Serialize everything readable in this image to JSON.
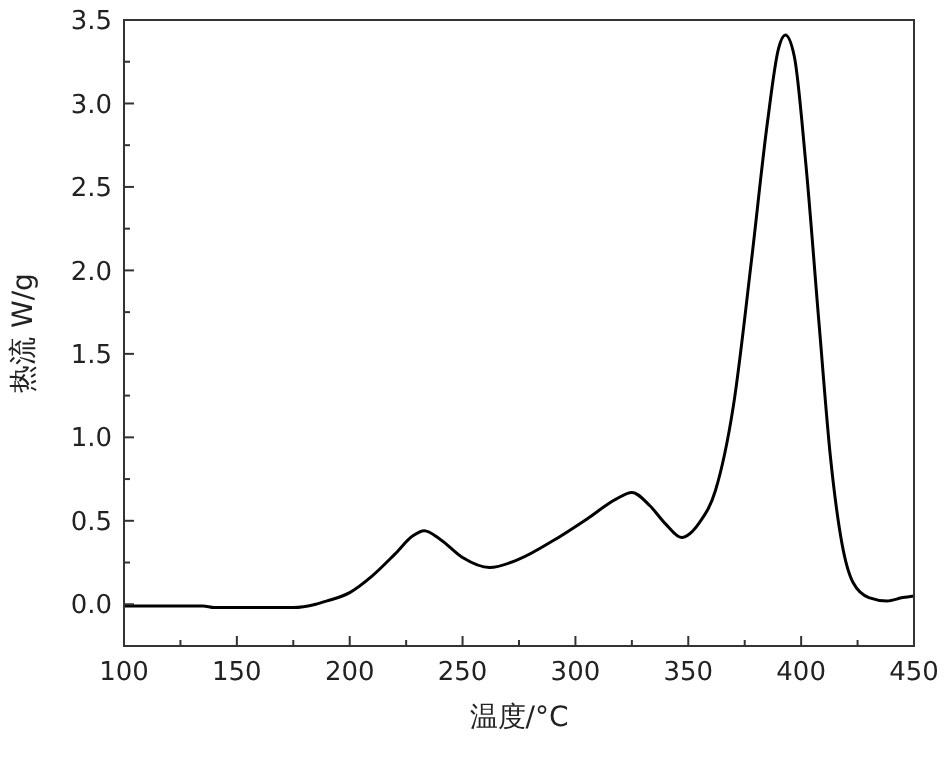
{
  "chart_data": {
    "type": "line",
    "xlabel": "温度/°C",
    "ylabel": "热流 W/g",
    "x": [
      100,
      135,
      140,
      175,
      185,
      190,
      200,
      210,
      220,
      228,
      233,
      240,
      250,
      262,
      275,
      290,
      305,
      318,
      325,
      333,
      340,
      347,
      355,
      362,
      370,
      378,
      385,
      390,
      393,
      397,
      402,
      408,
      413,
      418,
      423,
      430,
      438,
      445,
      450
    ],
    "series": [
      {
        "color": "#000000",
        "values": [
          -0.01,
          -0.01,
          -0.02,
          -0.02,
          0.0,
          0.02,
          0.07,
          0.17,
          0.3,
          0.41,
          0.44,
          0.39,
          0.28,
          0.22,
          0.27,
          0.38,
          0.51,
          0.63,
          0.67,
          0.59,
          0.48,
          0.4,
          0.49,
          0.68,
          1.19,
          2.06,
          2.88,
          3.33,
          3.41,
          3.28,
          2.65,
          1.67,
          0.88,
          0.37,
          0.13,
          0.04,
          0.02,
          0.04,
          0.05
        ]
      }
    ],
    "xlim": [
      100,
      450
    ],
    "ylim": [
      -0.25,
      3.5
    ],
    "xticks": [
      100,
      {
        "value": 125,
        "label": null
      },
      150,
      {
        "value": 175,
        "label": null
      },
      200,
      {
        "value": 225,
        "label": null
      },
      250,
      {
        "value": 275,
        "label": null
      },
      300,
      {
        "value": 325,
        "label": null
      },
      350,
      {
        "value": 375,
        "label": null
      },
      400,
      {
        "value": 425,
        "label": null
      },
      450
    ],
    "yticks": [
      {
        "value": 0,
        "label": "0.0"
      },
      {
        "value": 0.25,
        "label": null
      },
      {
        "value": 0.5,
        "label": "0.5"
      },
      {
        "value": 0.75,
        "label": null
      },
      {
        "value": 1,
        "label": "1.0"
      },
      {
        "value": 1.25,
        "label": null
      },
      {
        "value": 1.5,
        "label": "1.5"
      },
      {
        "value": 1.75,
        "label": null
      },
      {
        "value": 2,
        "label": "2.0"
      },
      {
        "value": 2.25,
        "label": null
      },
      {
        "value": 2.5,
        "label": "2.5"
      },
      {
        "value": 2.75,
        "label": null
      },
      {
        "value": 3,
        "label": "3.0"
      },
      {
        "value": 3.25,
        "label": null
      },
      {
        "value": 3.5,
        "label": "3.5"
      }
    ],
    "grid": false,
    "marker": "none",
    "line_style": "solid"
  }
}
